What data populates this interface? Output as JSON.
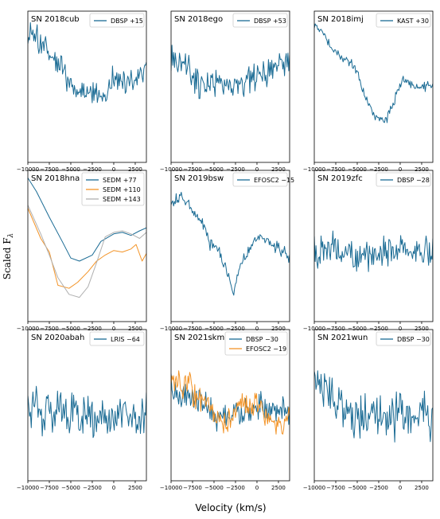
{
  "figure": {
    "xlabel": "Velocity (km/s)",
    "ylabel": "Scaled F_λ"
  },
  "chart_data": [
    {
      "type": "line",
      "title": "SN 2018cub",
      "xlim": [
        -10000,
        3800
      ],
      "xticks": [
        "−10000",
        "−7500",
        "−5000",
        "−2500",
        "0",
        "2500"
      ],
      "series": [
        {
          "name": "DBSP +15",
          "color": "#1a6b94",
          "seed": 11,
          "noise": 0.11,
          "base": [
            [
              -10000,
              0.83
            ],
            [
              -9300,
              0.82
            ],
            [
              -8000,
              0.74
            ],
            [
              -6000,
              0.62
            ],
            [
              -4500,
              0.46
            ],
            [
              -3000,
              0.48
            ],
            [
              -1500,
              0.44
            ],
            [
              0,
              0.56
            ],
            [
              1500,
              0.52
            ],
            [
              3800,
              0.6
            ]
          ]
        }
      ]
    },
    {
      "type": "line",
      "title": "SN 2018ego",
      "xlim": [
        -10000,
        3800
      ],
      "xticks": [
        "−10000",
        "−7500",
        "−5000",
        "−2500",
        "0",
        "2500"
      ],
      "series": [
        {
          "name": "DBSP +53",
          "color": "#1a6b94",
          "seed": 23,
          "noise": 0.13,
          "base": [
            [
              -10000,
              0.68
            ],
            [
              -8000,
              0.62
            ],
            [
              -6500,
              0.5
            ],
            [
              -5000,
              0.53
            ],
            [
              -3000,
              0.5
            ],
            [
              -1000,
              0.54
            ],
            [
              1000,
              0.58
            ],
            [
              3800,
              0.7
            ]
          ]
        }
      ]
    },
    {
      "type": "line",
      "title": "SN 2018imj",
      "xlim": [
        -10000,
        3800
      ],
      "xticks": [
        "−10000",
        "−7500",
        "−5000",
        "−2500",
        "0",
        "2500"
      ],
      "series": [
        {
          "name": "KAST +30",
          "color": "#1a6b94",
          "seed": 37,
          "noise": 0.04,
          "base": [
            [
              -10000,
              0.9
            ],
            [
              -9000,
              0.86
            ],
            [
              -8000,
              0.76
            ],
            [
              -7000,
              0.69
            ],
            [
              -6000,
              0.68
            ],
            [
              -5000,
              0.6
            ],
            [
              -4000,
              0.42
            ],
            [
              -3000,
              0.3
            ],
            [
              -2200,
              0.26
            ],
            [
              -1500,
              0.3
            ],
            [
              -500,
              0.44
            ],
            [
              500,
              0.56
            ],
            [
              1500,
              0.5
            ],
            [
              2500,
              0.5
            ],
            [
              3800,
              0.52
            ]
          ]
        }
      ]
    },
    {
      "type": "line",
      "title": "SN 2018hna",
      "xlim": [
        -10000,
        3800
      ],
      "xticks": [
        "−10000",
        "−7500",
        "−5000",
        "−2500",
        "0",
        "2500"
      ],
      "series": [
        {
          "name": "SEDM +77",
          "color": "#1a6b94",
          "seed": 0,
          "noise": 0,
          "base": [
            [
              -10000,
              0.95
            ],
            [
              -9000,
              0.86
            ],
            [
              -7500,
              0.69
            ],
            [
              -6000,
              0.53
            ],
            [
              -5000,
              0.42
            ],
            [
              -4000,
              0.4
            ],
            [
              -2500,
              0.44
            ],
            [
              -1500,
              0.53
            ],
            [
              0,
              0.58
            ],
            [
              1000,
              0.59
            ],
            [
              2000,
              0.57
            ],
            [
              3000,
              0.6
            ],
            [
              3800,
              0.62
            ]
          ]
        },
        {
          "name": "SEDM +110",
          "color": "#f39428",
          "seed": 0,
          "noise": 0,
          "base": [
            [
              -10000,
              0.75
            ],
            [
              -8500,
              0.55
            ],
            [
              -7500,
              0.46
            ],
            [
              -6500,
              0.24
            ],
            [
              -5200,
              0.22
            ],
            [
              -4200,
              0.26
            ],
            [
              -3000,
              0.33
            ],
            [
              -2000,
              0.4
            ],
            [
              -1000,
              0.44
            ],
            [
              0,
              0.47
            ],
            [
              1000,
              0.46
            ],
            [
              2000,
              0.48
            ],
            [
              2600,
              0.51
            ],
            [
              3300,
              0.4
            ],
            [
              3800,
              0.45
            ]
          ]
        },
        {
          "name": "SEDM +143",
          "color": "#b0b0b0",
          "seed": 0,
          "noise": 0,
          "base": [
            [
              -10000,
              0.77
            ],
            [
              -8500,
              0.58
            ],
            [
              -7500,
              0.44
            ],
            [
              -6500,
              0.29
            ],
            [
              -5200,
              0.18
            ],
            [
              -4000,
              0.16
            ],
            [
              -3000,
              0.23
            ],
            [
              -2000,
              0.39
            ],
            [
              -1000,
              0.56
            ],
            [
              0,
              0.59
            ],
            [
              1000,
              0.6
            ],
            [
              2000,
              0.58
            ],
            [
              3000,
              0.55
            ],
            [
              3800,
              0.59
            ]
          ]
        }
      ]
    },
    {
      "type": "line",
      "title": "SN 2019bsw",
      "xlim": [
        -10000,
        3800
      ],
      "xticks": [
        "−10000",
        "−7500",
        "−5000",
        "−2500",
        "0",
        "2500"
      ],
      "series": [
        {
          "name": "EFOSC2 −15",
          "color": "#1a6b94",
          "seed": 51,
          "noise": 0.05,
          "base": [
            [
              -10000,
              0.8
            ],
            [
              -9000,
              0.82
            ],
            [
              -8000,
              0.79
            ],
            [
              -6500,
              0.66
            ],
            [
              -5500,
              0.52
            ],
            [
              -4500,
              0.47
            ],
            [
              -3500,
              0.33
            ],
            [
              -2800,
              0.18
            ],
            [
              -2000,
              0.36
            ],
            [
              -1000,
              0.47
            ],
            [
              0,
              0.56
            ],
            [
              1000,
              0.55
            ],
            [
              2500,
              0.48
            ],
            [
              3800,
              0.42
            ]
          ]
        }
      ]
    },
    {
      "type": "line",
      "title": "SN 2019zfc",
      "xlim": [
        -10000,
        3800
      ],
      "xticks": [
        "−10000",
        "−7500",
        "−5000",
        "−2500",
        "0",
        "2500"
      ],
      "series": [
        {
          "name": "DBSP −28",
          "color": "#1a6b94",
          "seed": 63,
          "noise": 0.13,
          "base": [
            [
              -10000,
              0.46
            ],
            [
              -8000,
              0.48
            ],
            [
              -5500,
              0.42
            ],
            [
              -3000,
              0.45
            ],
            [
              -1000,
              0.47
            ],
            [
              1500,
              0.44
            ],
            [
              3800,
              0.45
            ]
          ]
        }
      ]
    },
    {
      "type": "line",
      "title": "SN 2020abah",
      "xlim": [
        -10000,
        3800
      ],
      "xticks": [
        "−10000",
        "−7500",
        "−5000",
        "−2500",
        "0",
        "2500"
      ],
      "series": [
        {
          "name": "LRIS −64",
          "color": "#1a6b94",
          "seed": 77,
          "noise": 0.2,
          "base": [
            [
              -10000,
              0.45
            ],
            [
              -6000,
              0.45
            ],
            [
              -2000,
              0.42
            ],
            [
              3800,
              0.44
            ]
          ]
        }
      ]
    },
    {
      "type": "line",
      "title": "SN 2021skm",
      "xlim": [
        -10000,
        3800
      ],
      "xticks": [
        "−10000",
        "−7500",
        "−5000",
        "−2500",
        "0",
        "2500"
      ],
      "series": [
        {
          "name": "DBSP −30",
          "color": "#1a6b94",
          "seed": 89,
          "noise": 0.12,
          "base": [
            [
              -10000,
              0.6
            ],
            [
              -8000,
              0.55
            ],
            [
              -6000,
              0.5
            ],
            [
              -4000,
              0.4
            ],
            [
              -2000,
              0.45
            ],
            [
              0,
              0.48
            ],
            [
              2000,
              0.45
            ],
            [
              3800,
              0.45
            ]
          ]
        },
        {
          "name": "EFOSC2 −19",
          "color": "#f39428",
          "seed": 97,
          "noise": 0.12,
          "base": [
            [
              -10000,
              0.63
            ],
            [
              -8000,
              0.62
            ],
            [
              -6000,
              0.5
            ],
            [
              -4000,
              0.37
            ],
            [
              -2000,
              0.5
            ],
            [
              0,
              0.5
            ],
            [
              2000,
              0.35
            ],
            [
              3800,
              0.42
            ]
          ]
        }
      ]
    },
    {
      "type": "line",
      "title": "SN 2021wun",
      "xlim": [
        -10000,
        3800
      ],
      "xticks": [
        "−10000",
        "−7500",
        "−5000",
        "−2500",
        "0",
        "2500"
      ],
      "series": [
        {
          "name": "DBSP −30",
          "color": "#1a6b94",
          "seed": 103,
          "noise": 0.2,
          "base": [
            [
              -10000,
              0.75
            ],
            [
              -8500,
              0.6
            ],
            [
              -6000,
              0.45
            ],
            [
              -3000,
              0.42
            ],
            [
              0,
              0.45
            ],
            [
              3800,
              0.45
            ]
          ]
        }
      ]
    }
  ]
}
